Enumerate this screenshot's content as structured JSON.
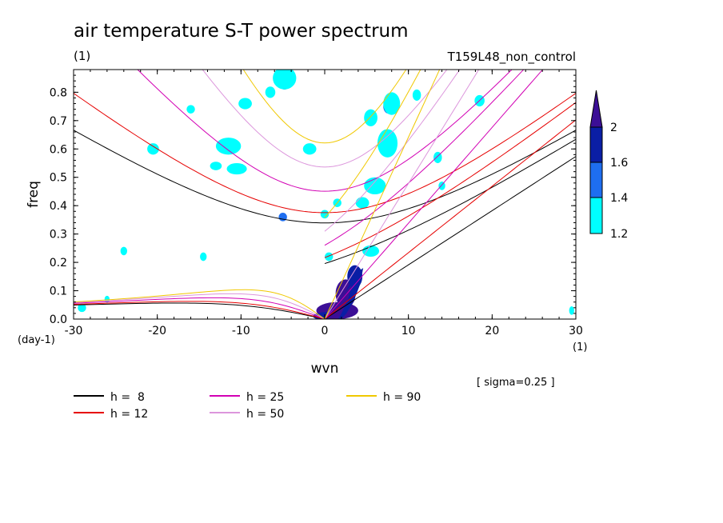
{
  "figure": {
    "title": "air temperature S-T power spectrum",
    "left_note": "(1)",
    "right_note": "T159L48_non_control",
    "sigma_note": "[ sigma=0.25 ]"
  },
  "chart_data": {
    "type": "contour",
    "xlabel": "wvn",
    "ylabel": "freq",
    "x_unit": "(1)",
    "y_unit": "(day-1)",
    "xlim": [
      -30,
      30
    ],
    "ylim": [
      0,
      0.88
    ],
    "x_ticks": [
      -30,
      -20,
      -10,
      0,
      10,
      20,
      30
    ],
    "y_ticks": [
      0.0,
      0.1,
      0.2,
      0.3,
      0.4,
      0.5,
      0.6,
      0.7,
      0.8
    ],
    "x_tick_labels": [
      "-30",
      "-20",
      "-10",
      "0",
      "10",
      "20",
      "30"
    ],
    "y_tick_labels": [
      "0.0",
      "0.1",
      "0.2",
      "0.3",
      "0.4",
      "0.5",
      "0.6",
      "0.7",
      "0.8"
    ],
    "colorbar": {
      "levels": [
        1.2,
        1.4,
        1.6,
        2
      ],
      "level_labels": [
        "1.2",
        "1.4",
        "1.6",
        "2"
      ],
      "colors": [
        "#00ffff",
        "#1e6ef0",
        "#0a1ea5",
        "#3c0f96"
      ]
    },
    "dispersion_curves": [
      {
        "name": "h =  8",
        "h": 8,
        "color": "#000000"
      },
      {
        "name": "h = 12",
        "h": 12,
        "color": "#e60000"
      },
      {
        "name": "h = 25",
        "h": 25,
        "color": "#d200b4"
      },
      {
        "name": "h = 50",
        "h": 50,
        "color": "#dc96dc"
      },
      {
        "name": "h = 90",
        "h": 90,
        "color": "#f0c800"
      }
    ],
    "significant_regions": [
      {
        "x": 1.5,
        "y": 0.03,
        "rx": 2.5,
        "ry": 0.03,
        "level": 3
      },
      {
        "x": 2.5,
        "y": 0.09,
        "rx": 1.2,
        "ry": 0.05,
        "level": 3
      },
      {
        "x": 3.6,
        "y": 0.15,
        "rx": 0.9,
        "ry": 0.04,
        "level": 2
      },
      {
        "x": 0.4,
        "y": 0.01,
        "rx": 1.8,
        "ry": 0.015,
        "level": 2
      },
      {
        "x": -4.8,
        "y": 0.84,
        "rx": 0.9,
        "ry": 0.03,
        "level": 2
      },
      {
        "x": -4.8,
        "y": 0.84,
        "rx": 0.5,
        "ry": 0.015,
        "level": 3
      },
      {
        "x": 7.3,
        "y": 0.62,
        "rx": 0.8,
        "ry": 0.03,
        "level": 1
      },
      {
        "x": 7.6,
        "y": 0.75,
        "rx": 0.6,
        "ry": 0.025,
        "level": 1
      },
      {
        "x": 5.5,
        "y": 0.71,
        "rx": 0.8,
        "ry": 0.03,
        "level": 0
      },
      {
        "x": 7.5,
        "y": 0.62,
        "rx": 1.2,
        "ry": 0.05,
        "level": 0
      },
      {
        "x": 8.0,
        "y": 0.76,
        "rx": 1.0,
        "ry": 0.04,
        "level": 0
      },
      {
        "x": 6.0,
        "y": 0.47,
        "rx": 1.3,
        "ry": 0.03,
        "level": 0
      },
      {
        "x": 4.5,
        "y": 0.41,
        "rx": 0.8,
        "ry": 0.02,
        "level": 0
      },
      {
        "x": 5.5,
        "y": 0.24,
        "rx": 1.0,
        "ry": 0.02,
        "level": 0
      },
      {
        "x": -1.8,
        "y": 0.6,
        "rx": 0.8,
        "ry": 0.02,
        "level": 0
      },
      {
        "x": -11.5,
        "y": 0.61,
        "rx": 1.5,
        "ry": 0.03,
        "level": 0
      },
      {
        "x": -4.8,
        "y": 0.85,
        "rx": 1.4,
        "ry": 0.04,
        "level": 0
      },
      {
        "x": -6.5,
        "y": 0.8,
        "rx": 0.6,
        "ry": 0.02,
        "level": 0
      },
      {
        "x": -9.5,
        "y": 0.76,
        "rx": 0.8,
        "ry": 0.02,
        "level": 0
      },
      {
        "x": -5.0,
        "y": 0.36,
        "rx": 0.5,
        "ry": 0.015,
        "level": 1
      },
      {
        "x": -10.5,
        "y": 0.53,
        "rx": 1.2,
        "ry": 0.02,
        "level": 0
      },
      {
        "x": -13.0,
        "y": 0.54,
        "rx": 0.7,
        "ry": 0.015,
        "level": 0
      },
      {
        "x": -20.5,
        "y": 0.6,
        "rx": 0.7,
        "ry": 0.02,
        "level": 0
      },
      {
        "x": 11.0,
        "y": 0.79,
        "rx": 0.5,
        "ry": 0.02,
        "level": 0
      },
      {
        "x": 18.5,
        "y": 0.77,
        "rx": 0.6,
        "ry": 0.02,
        "level": 0
      },
      {
        "x": 13.5,
        "y": 0.57,
        "rx": 0.5,
        "ry": 0.02,
        "level": 0
      },
      {
        "x": 0.0,
        "y": 0.37,
        "rx": 0.5,
        "ry": 0.015,
        "level": 0
      },
      {
        "x": 1.5,
        "y": 0.41,
        "rx": 0.5,
        "ry": 0.015,
        "level": 0
      },
      {
        "x": -14.5,
        "y": 0.22,
        "rx": 0.4,
        "ry": 0.015,
        "level": 0
      },
      {
        "x": -24.0,
        "y": 0.24,
        "rx": 0.4,
        "ry": 0.015,
        "level": 0
      },
      {
        "x": -26.0,
        "y": 0.07,
        "rx": 0.3,
        "ry": 0.012,
        "level": 0
      },
      {
        "x": 29.5,
        "y": 0.03,
        "rx": 0.3,
        "ry": 0.015,
        "level": 0
      },
      {
        "x": -16.0,
        "y": 0.74,
        "rx": 0.5,
        "ry": 0.015,
        "level": 0
      },
      {
        "x": 0.5,
        "y": 0.22,
        "rx": 0.5,
        "ry": 0.015,
        "level": 0
      },
      {
        "x": -29.0,
        "y": 0.04,
        "rx": 0.5,
        "ry": 0.015,
        "level": 0
      },
      {
        "x": 14.0,
        "y": 0.47,
        "rx": 0.4,
        "ry": 0.015,
        "level": 0
      }
    ]
  }
}
